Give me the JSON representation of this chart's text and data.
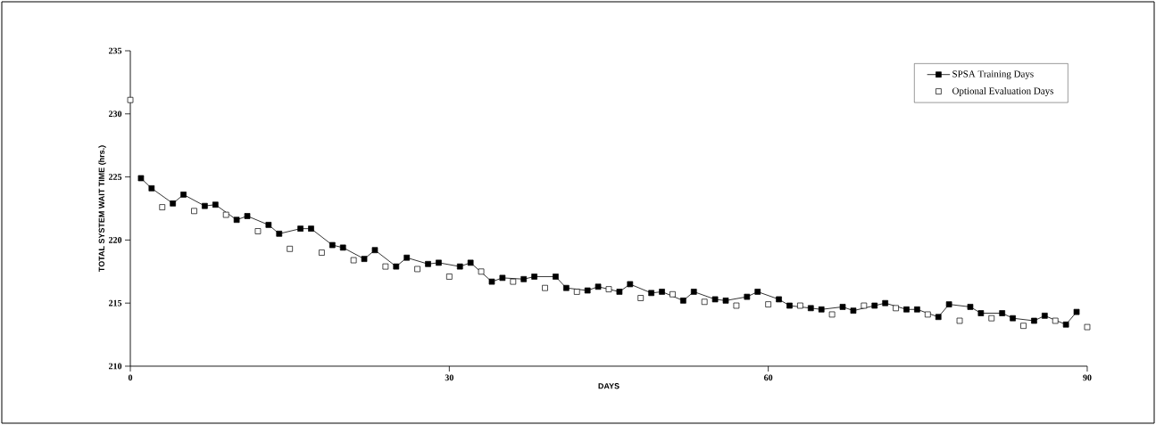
{
  "chart_data": {
    "type": "line",
    "xlabel": "DAYS",
    "ylabel": "TOTAL SYSTEM WAIT TIME (hrs.)",
    "xlim": [
      0,
      90
    ],
    "xticks": [
      0,
      30,
      60,
      90
    ],
    "ylim": [
      210,
      235
    ],
    "yticks": [
      210,
      215,
      220,
      225,
      230,
      235
    ],
    "grid": false,
    "legend": "top right",
    "marker": "square",
    "series": [
      {
        "name": "SPSA Training Days",
        "color": "#000000",
        "x": [
          1,
          2,
          4,
          5,
          7,
          8,
          10,
          11,
          13,
          14,
          16,
          17,
          19,
          20,
          22,
          23,
          25,
          26,
          28,
          29,
          31,
          32,
          34,
          35,
          37,
          38,
          40,
          41,
          43,
          44,
          46,
          47,
          49,
          50,
          52,
          53,
          55,
          56,
          58,
          59,
          61,
          62,
          64,
          65,
          67,
          68,
          70,
          71,
          73,
          74,
          76,
          77,
          79,
          80,
          82,
          83,
          85,
          86,
          88,
          89
        ],
        "values": [
          224.9,
          224.1,
          222.9,
          223.6,
          222.7,
          222.8,
          221.6,
          221.9,
          221.2,
          220.5,
          220.9,
          220.9,
          219.6,
          219.4,
          218.5,
          219.2,
          217.9,
          218.6,
          218.1,
          218.2,
          217.9,
          218.2,
          216.7,
          217.0,
          216.9,
          217.1,
          217.1,
          216.2,
          216.0,
          216.3,
          215.9,
          216.5,
          215.8,
          215.9,
          215.2,
          215.9,
          215.3,
          215.2,
          215.5,
          215.9,
          215.3,
          214.8,
          214.6,
          214.5,
          214.7,
          214.4,
          214.8,
          215.0,
          214.5,
          214.5,
          213.9,
          214.9,
          214.7,
          214.2,
          214.2,
          213.8,
          213.6,
          214.0,
          213.3,
          214.3
        ]
      },
      {
        "name": "Optional Evaluation Days",
        "type": "scatter",
        "color": "#ffffff",
        "x": [
          0,
          3,
          6,
          9,
          12,
          15,
          18,
          21,
          24,
          27,
          30,
          33,
          36,
          39,
          42,
          45,
          48,
          51,
          54,
          57,
          60,
          63,
          66,
          69,
          72,
          75,
          78,
          81,
          84,
          87,
          90
        ],
        "values": [
          231.1,
          222.6,
          222.3,
          222.0,
          220.7,
          219.3,
          219.0,
          218.4,
          217.9,
          217.7,
          217.1,
          217.5,
          216.7,
          216.2,
          215.9,
          216.1,
          215.4,
          215.7,
          215.1,
          214.8,
          214.9,
          214.8,
          214.1,
          214.8,
          214.6,
          214.1,
          213.6,
          213.8,
          213.2,
          213.6,
          213.1
        ]
      }
    ]
  }
}
